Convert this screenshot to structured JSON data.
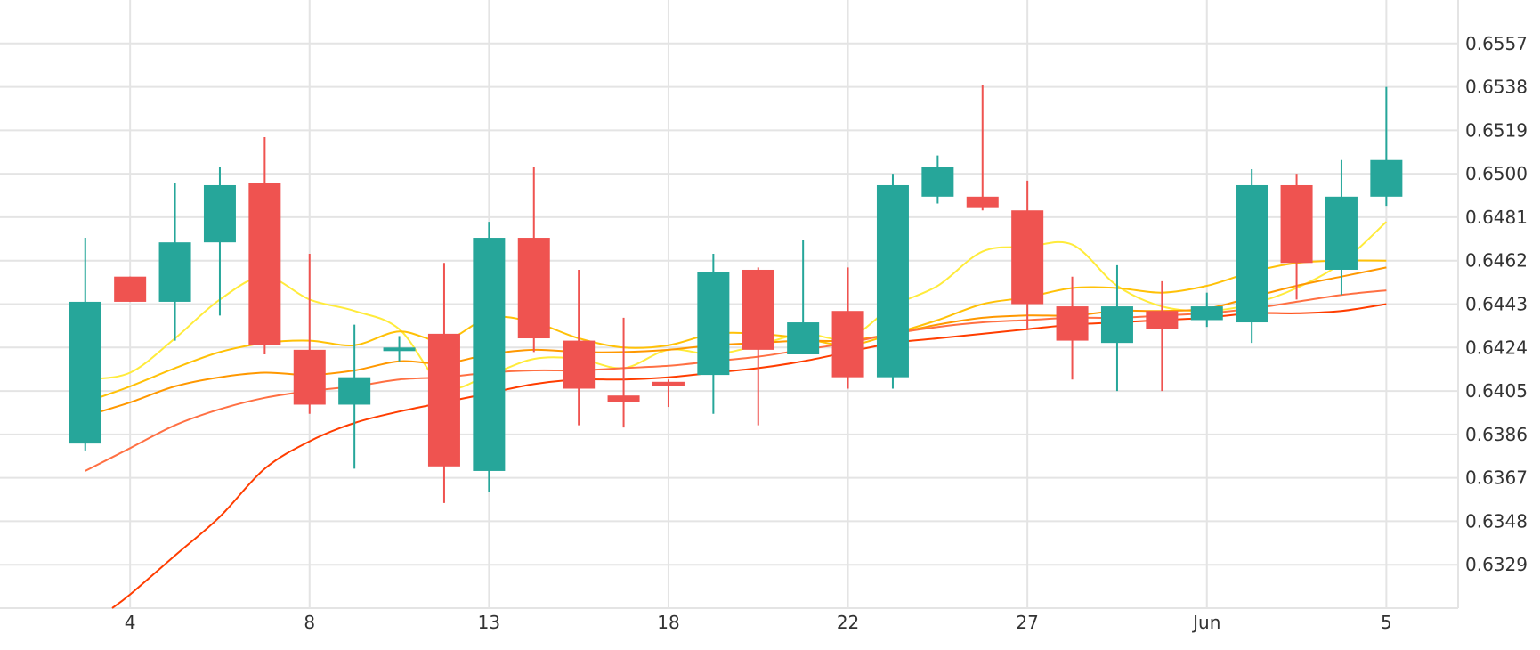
{
  "chart_data": {
    "type": "candlestick",
    "title": "",
    "xlabel": "",
    "ylabel": "",
    "y_axis_position": "right",
    "grid": true,
    "legend": "none",
    "colors": {
      "up": "#26a69a",
      "down": "#ef5350",
      "grid": "#e4e4e4",
      "ma": [
        "#ffeb3b",
        "#ffc107",
        "#ff9800",
        "#ff7043",
        "#ff3d00"
      ]
    },
    "ylim": [
      0.631,
      0.6576
    ],
    "y_ticks": [
      {
        "value": 0.6329,
        "label": "0.6329"
      },
      {
        "value": 0.6348,
        "label": "0.6348"
      },
      {
        "value": 0.6367,
        "label": "0.6367"
      },
      {
        "value": 0.6386,
        "label": "0.6386"
      },
      {
        "value": 0.6405,
        "label": "0.6405"
      },
      {
        "value": 0.6424,
        "label": "0.6424"
      },
      {
        "value": 0.6443,
        "label": "0.6443"
      },
      {
        "value": 0.6462,
        "label": "0.6462"
      },
      {
        "value": 0.6481,
        "label": "0.6481"
      },
      {
        "value": 0.65,
        "label": "0.6500"
      },
      {
        "value": 0.6519,
        "label": "0.6519"
      },
      {
        "value": 0.6538,
        "label": "0.6538"
      },
      {
        "value": 0.6557,
        "label": "0.6557"
      }
    ],
    "x_ticks": [
      {
        "index": 1,
        "label": "4"
      },
      {
        "index": 5,
        "label": "8"
      },
      {
        "index": 9,
        "label": "13"
      },
      {
        "index": 13,
        "label": "18"
      },
      {
        "index": 17,
        "label": "22"
      },
      {
        "index": 21,
        "label": "27"
      },
      {
        "index": 25,
        "label": "Jun"
      },
      {
        "index": 29,
        "label": "5"
      }
    ],
    "x_range": [
      -1.9,
      30.6
    ],
    "candles": [
      {
        "open": 0.6382,
        "high": 0.6472,
        "low": 0.6379,
        "close": 0.6444
      },
      {
        "open": 0.6455,
        "high": 0.6455,
        "low": 0.6444,
        "close": 0.6444
      },
      {
        "open": 0.6444,
        "high": 0.6496,
        "low": 0.6427,
        "close": 0.647
      },
      {
        "open": 0.647,
        "high": 0.6503,
        "low": 0.6438,
        "close": 0.6495
      },
      {
        "open": 0.6496,
        "high": 0.6516,
        "low": 0.6421,
        "close": 0.6425
      },
      {
        "open": 0.6423,
        "high": 0.6465,
        "low": 0.6395,
        "close": 0.6399
      },
      {
        "open": 0.6399,
        "high": 0.6434,
        "low": 0.6371,
        "close": 0.6411
      },
      {
        "open": 0.6423,
        "high": 0.6429,
        "low": 0.6418,
        "close": 0.6424
      },
      {
        "open": 0.643,
        "high": 0.6461,
        "low": 0.6356,
        "close": 0.6372
      },
      {
        "open": 0.637,
        "high": 0.6479,
        "low": 0.6361,
        "close": 0.6472
      },
      {
        "open": 0.6472,
        "high": 0.6503,
        "low": 0.6422,
        "close": 0.6428
      },
      {
        "open": 0.6427,
        "high": 0.6458,
        "low": 0.639,
        "close": 0.6406
      },
      {
        "open": 0.6403,
        "high": 0.6437,
        "low": 0.6389,
        "close": 0.64
      },
      {
        "open": 0.6409,
        "high": 0.641,
        "low": 0.6398,
        "close": 0.6407
      },
      {
        "open": 0.6412,
        "high": 0.6465,
        "low": 0.6395,
        "close": 0.6457
      },
      {
        "open": 0.6458,
        "high": 0.6459,
        "low": 0.639,
        "close": 0.6423
      },
      {
        "open": 0.6421,
        "high": 0.6471,
        "low": 0.6421,
        "close": 0.6435
      },
      {
        "open": 0.644,
        "high": 0.6459,
        "low": 0.6406,
        "close": 0.6411
      },
      {
        "open": 0.6411,
        "high": 0.65,
        "low": 0.6406,
        "close": 0.6495
      },
      {
        "open": 0.649,
        "high": 0.6508,
        "low": 0.6487,
        "close": 0.6503
      },
      {
        "open": 0.649,
        "high": 0.6539,
        "low": 0.6484,
        "close": 0.6485
      },
      {
        "open": 0.6484,
        "high": 0.6497,
        "low": 0.6432,
        "close": 0.6443
      },
      {
        "open": 0.6442,
        "high": 0.6455,
        "low": 0.641,
        "close": 0.6427
      },
      {
        "open": 0.6426,
        "high": 0.646,
        "low": 0.6405,
        "close": 0.6442
      },
      {
        "open": 0.644,
        "high": 0.6453,
        "low": 0.6405,
        "close": 0.6432
      },
      {
        "open": 0.6436,
        "high": 0.6448,
        "low": 0.6433,
        "close": 0.6442
      },
      {
        "open": 0.6435,
        "high": 0.6502,
        "low": 0.6426,
        "close": 0.6495
      },
      {
        "open": 0.6495,
        "high": 0.65,
        "low": 0.6445,
        "close": 0.6461
      },
      {
        "open": 0.6458,
        "high": 0.6506,
        "low": 0.6447,
        "close": 0.649
      },
      {
        "open": 0.649,
        "high": 0.6538,
        "low": 0.6486,
        "close": 0.6506
      }
    ],
    "series": [
      {
        "color": "#ffeb3b",
        "x": [
          0,
          1,
          2,
          3,
          4,
          5,
          6,
          7,
          8,
          9,
          10,
          11,
          12,
          13,
          14,
          15,
          16,
          17,
          18,
          19,
          20,
          21,
          22,
          23,
          24,
          25,
          26,
          27,
          28,
          29
        ],
        "values": [
          0.641,
          0.6413,
          0.6428,
          0.6445,
          0.6455,
          0.6445,
          0.644,
          0.6432,
          0.6407,
          0.6412,
          0.6419,
          0.6419,
          0.6415,
          0.6423,
          0.6421,
          0.6425,
          0.643,
          0.6428,
          0.6442,
          0.6451,
          0.6466,
          0.6468,
          0.6469,
          0.6451,
          0.6442,
          0.644,
          0.6443,
          0.645,
          0.6461,
          0.6479
        ]
      },
      {
        "color": "#ffc107",
        "x": [
          0,
          1,
          2,
          3,
          4,
          5,
          6,
          7,
          8,
          9,
          10,
          11,
          12,
          13,
          14,
          15,
          16,
          17,
          18,
          19,
          20,
          21,
          22,
          23,
          24,
          25,
          26,
          27,
          28,
          29
        ],
        "values": [
          0.64,
          0.6407,
          0.6415,
          0.6422,
          0.6426,
          0.6427,
          0.6425,
          0.6431,
          0.6427,
          0.6437,
          0.6435,
          0.6428,
          0.6424,
          0.6425,
          0.643,
          0.643,
          0.6428,
          0.6425,
          0.643,
          0.6436,
          0.6443,
          0.6446,
          0.645,
          0.645,
          0.6448,
          0.6451,
          0.6457,
          0.6461,
          0.6462,
          0.6462
        ]
      },
      {
        "color": "#ff9800",
        "x": [
          0,
          1,
          2,
          3,
          4,
          5,
          6,
          7,
          8,
          9,
          10,
          11,
          12,
          13,
          14,
          15,
          16,
          17,
          18,
          19,
          20,
          21,
          22,
          23,
          24,
          25,
          26,
          27,
          28,
          29
        ],
        "values": [
          0.6394,
          0.64,
          0.6407,
          0.6411,
          0.6413,
          0.6412,
          0.6414,
          0.6418,
          0.6417,
          0.6421,
          0.6423,
          0.6422,
          0.6422,
          0.6423,
          0.6425,
          0.6426,
          0.6427,
          0.6427,
          0.643,
          0.6434,
          0.6437,
          0.6438,
          0.6438,
          0.644,
          0.644,
          0.6441,
          0.6446,
          0.6451,
          0.6455,
          0.6459
        ]
      },
      {
        "color": "#ff7043",
        "x": [
          0,
          1,
          2,
          3,
          4,
          5,
          6,
          7,
          8,
          9,
          10,
          11,
          12,
          13,
          14,
          15,
          16,
          17,
          18,
          19,
          20,
          21,
          22,
          23,
          24,
          25,
          26,
          27,
          28,
          29
        ],
        "values": [
          0.637,
          0.638,
          0.639,
          0.6397,
          0.6402,
          0.6405,
          0.6407,
          0.641,
          0.6411,
          0.6413,
          0.6414,
          0.6414,
          0.6415,
          0.6416,
          0.6418,
          0.642,
          0.6423,
          0.6426,
          0.643,
          0.6433,
          0.6435,
          0.6436,
          0.6437,
          0.6437,
          0.6438,
          0.6439,
          0.6441,
          0.6444,
          0.6447,
          0.6449
        ]
      },
      {
        "color": "#ff3d00",
        "x": [
          0.6,
          1,
          2,
          3,
          4,
          5,
          6,
          7,
          8,
          9,
          10,
          11,
          12,
          13,
          14,
          15,
          16,
          17,
          18,
          19,
          20,
          21,
          22,
          23,
          24,
          25,
          26,
          27,
          28,
          29
        ],
        "values": [
          0.631,
          0.6316,
          0.6333,
          0.635,
          0.6371,
          0.6383,
          0.6391,
          0.6396,
          0.64,
          0.6404,
          0.6408,
          0.641,
          0.641,
          0.6411,
          0.6413,
          0.6415,
          0.6418,
          0.6422,
          0.6426,
          0.6428,
          0.643,
          0.6432,
          0.6434,
          0.6435,
          0.6436,
          0.6437,
          0.6439,
          0.6439,
          0.644,
          0.6443
        ]
      }
    ]
  }
}
